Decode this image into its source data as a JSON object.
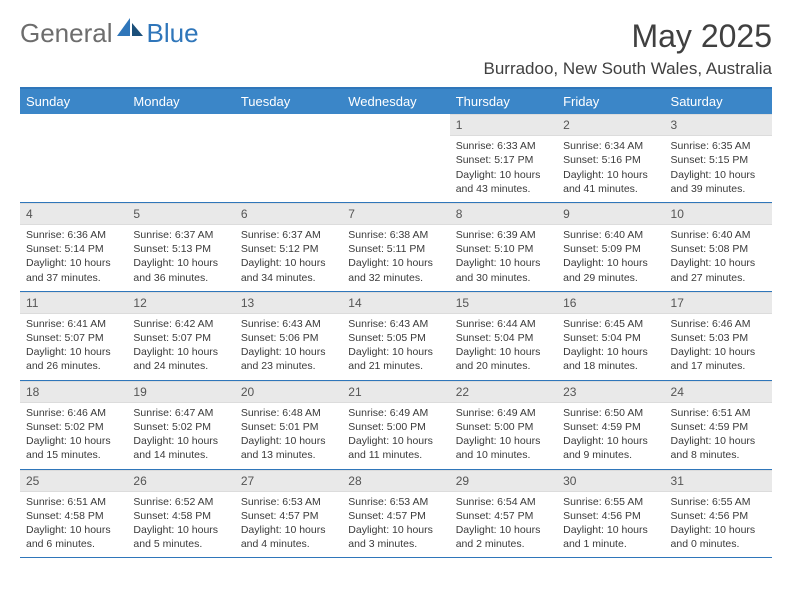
{
  "logo": {
    "text1": "General",
    "text2": "Blue"
  },
  "title": "May 2025",
  "location": "Burradoo, New South Wales, Australia",
  "colors": {
    "header_bg": "#3b86c8",
    "accent": "#2f76ba",
    "daynum_bg": "#e9e9e9",
    "text": "#3a3a3a"
  },
  "day_names": [
    "Sunday",
    "Monday",
    "Tuesday",
    "Wednesday",
    "Thursday",
    "Friday",
    "Saturday"
  ],
  "weeks": [
    [
      null,
      null,
      null,
      null,
      {
        "d": "1",
        "sr": "6:33 AM",
        "ss": "5:17 PM",
        "dl": "10 hours and 43 minutes."
      },
      {
        "d": "2",
        "sr": "6:34 AM",
        "ss": "5:16 PM",
        "dl": "10 hours and 41 minutes."
      },
      {
        "d": "3",
        "sr": "6:35 AM",
        "ss": "5:15 PM",
        "dl": "10 hours and 39 minutes."
      }
    ],
    [
      {
        "d": "4",
        "sr": "6:36 AM",
        "ss": "5:14 PM",
        "dl": "10 hours and 37 minutes."
      },
      {
        "d": "5",
        "sr": "6:37 AM",
        "ss": "5:13 PM",
        "dl": "10 hours and 36 minutes."
      },
      {
        "d": "6",
        "sr": "6:37 AM",
        "ss": "5:12 PM",
        "dl": "10 hours and 34 minutes."
      },
      {
        "d": "7",
        "sr": "6:38 AM",
        "ss": "5:11 PM",
        "dl": "10 hours and 32 minutes."
      },
      {
        "d": "8",
        "sr": "6:39 AM",
        "ss": "5:10 PM",
        "dl": "10 hours and 30 minutes."
      },
      {
        "d": "9",
        "sr": "6:40 AM",
        "ss": "5:09 PM",
        "dl": "10 hours and 29 minutes."
      },
      {
        "d": "10",
        "sr": "6:40 AM",
        "ss": "5:08 PM",
        "dl": "10 hours and 27 minutes."
      }
    ],
    [
      {
        "d": "11",
        "sr": "6:41 AM",
        "ss": "5:07 PM",
        "dl": "10 hours and 26 minutes."
      },
      {
        "d": "12",
        "sr": "6:42 AM",
        "ss": "5:07 PM",
        "dl": "10 hours and 24 minutes."
      },
      {
        "d": "13",
        "sr": "6:43 AM",
        "ss": "5:06 PM",
        "dl": "10 hours and 23 minutes."
      },
      {
        "d": "14",
        "sr": "6:43 AM",
        "ss": "5:05 PM",
        "dl": "10 hours and 21 minutes."
      },
      {
        "d": "15",
        "sr": "6:44 AM",
        "ss": "5:04 PM",
        "dl": "10 hours and 20 minutes."
      },
      {
        "d": "16",
        "sr": "6:45 AM",
        "ss": "5:04 PM",
        "dl": "10 hours and 18 minutes."
      },
      {
        "d": "17",
        "sr": "6:46 AM",
        "ss": "5:03 PM",
        "dl": "10 hours and 17 minutes."
      }
    ],
    [
      {
        "d": "18",
        "sr": "6:46 AM",
        "ss": "5:02 PM",
        "dl": "10 hours and 15 minutes."
      },
      {
        "d": "19",
        "sr": "6:47 AM",
        "ss": "5:02 PM",
        "dl": "10 hours and 14 minutes."
      },
      {
        "d": "20",
        "sr": "6:48 AM",
        "ss": "5:01 PM",
        "dl": "10 hours and 13 minutes."
      },
      {
        "d": "21",
        "sr": "6:49 AM",
        "ss": "5:00 PM",
        "dl": "10 hours and 11 minutes."
      },
      {
        "d": "22",
        "sr": "6:49 AM",
        "ss": "5:00 PM",
        "dl": "10 hours and 10 minutes."
      },
      {
        "d": "23",
        "sr": "6:50 AM",
        "ss": "4:59 PM",
        "dl": "10 hours and 9 minutes."
      },
      {
        "d": "24",
        "sr": "6:51 AM",
        "ss": "4:59 PM",
        "dl": "10 hours and 8 minutes."
      }
    ],
    [
      {
        "d": "25",
        "sr": "6:51 AM",
        "ss": "4:58 PM",
        "dl": "10 hours and 6 minutes."
      },
      {
        "d": "26",
        "sr": "6:52 AM",
        "ss": "4:58 PM",
        "dl": "10 hours and 5 minutes."
      },
      {
        "d": "27",
        "sr": "6:53 AM",
        "ss": "4:57 PM",
        "dl": "10 hours and 4 minutes."
      },
      {
        "d": "28",
        "sr": "6:53 AM",
        "ss": "4:57 PM",
        "dl": "10 hours and 3 minutes."
      },
      {
        "d": "29",
        "sr": "6:54 AM",
        "ss": "4:57 PM",
        "dl": "10 hours and 2 minutes."
      },
      {
        "d": "30",
        "sr": "6:55 AM",
        "ss": "4:56 PM",
        "dl": "10 hours and 1 minute."
      },
      {
        "d": "31",
        "sr": "6:55 AM",
        "ss": "4:56 PM",
        "dl": "10 hours and 0 minutes."
      }
    ]
  ],
  "labels": {
    "sunrise": "Sunrise:",
    "sunset": "Sunset:",
    "daylight": "Daylight:"
  }
}
